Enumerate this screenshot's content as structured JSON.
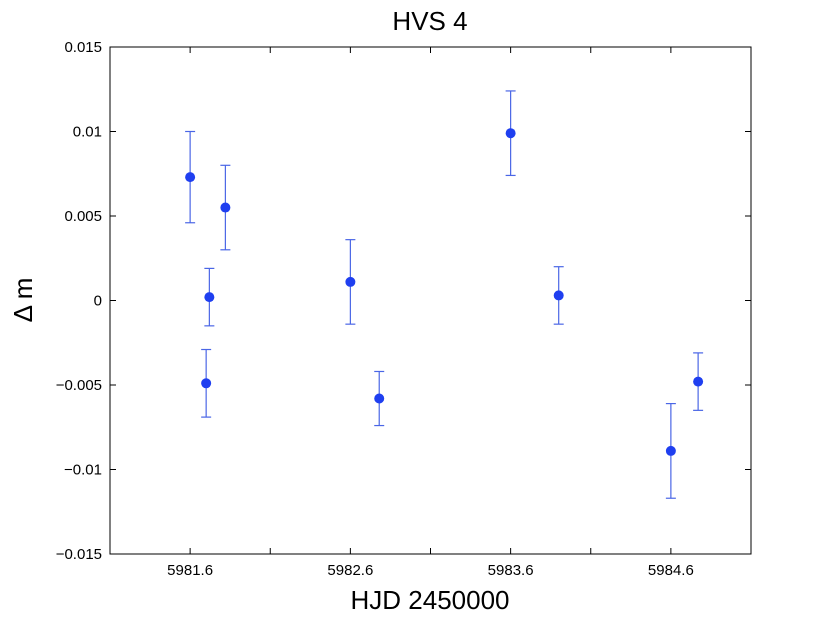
{
  "chart_data": {
    "type": "scatter",
    "title": "HVS 4",
    "xlabel": "HJD 2450000",
    "ylabel": "Δ m",
    "xlim": [
      5981.1,
      5985.1
    ],
    "ylim": [
      -0.015,
      0.015
    ],
    "x_ticks": [
      5981.6,
      5982.1,
      5982.6,
      5983.1,
      5983.6,
      5984.1,
      5984.6
    ],
    "x_tick_labels": [
      "5981.6",
      "",
      "5982.6",
      "",
      "5983.6",
      "",
      "5984.6"
    ],
    "y_ticks": [
      -0.015,
      -0.01,
      -0.005,
      0,
      0.005,
      0.01,
      0.015
    ],
    "y_tick_labels": [
      "−0.015",
      "−0.01",
      "−0.005",
      "0",
      "0.005",
      "0.01",
      "0.015"
    ],
    "grid": false,
    "marker_color": "#1f3ff0",
    "errorbar_color": "#4a66e6",
    "series": [
      {
        "points": [
          {
            "x": 5981.6,
            "y": 0.0073,
            "err": 0.0027
          },
          {
            "x": 5981.7,
            "y": -0.0049,
            "err": 0.002
          },
          {
            "x": 5981.72,
            "y": 0.0002,
            "err": 0.0017
          },
          {
            "x": 5981.82,
            "y": 0.0055,
            "err": 0.0025
          },
          {
            "x": 5982.6,
            "y": 0.0011,
            "err": 0.0025
          },
          {
            "x": 5982.78,
            "y": -0.0058,
            "err": 0.0016
          },
          {
            "x": 5983.6,
            "y": 0.0099,
            "err": 0.0025
          },
          {
            "x": 5983.9,
            "y": 0.0003,
            "err": 0.0017
          },
          {
            "x": 5984.6,
            "y": -0.0089,
            "err": 0.0028
          },
          {
            "x": 5984.77,
            "y": -0.0048,
            "err": 0.0017
          }
        ]
      }
    ]
  }
}
